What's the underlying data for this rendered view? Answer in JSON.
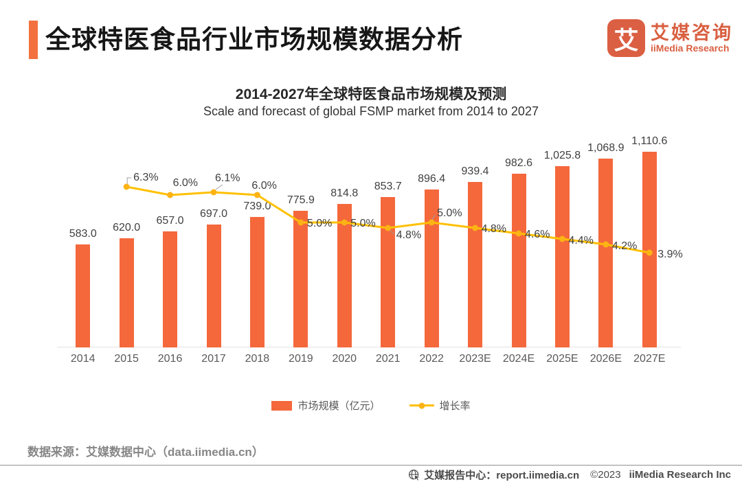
{
  "page": {
    "header": {
      "title": "全球特医食品行业市场规模数据分析",
      "logo": {
        "tile_char": "艾",
        "brand_cn": "艾媒咨询",
        "brand_en": "iiMedia Research"
      }
    },
    "source_note": "数据来源：艾媒数据中心（data.iimedia.cn）",
    "footer": {
      "report_center": "艾媒报告中心：report.iimedia.cn",
      "copyright": "©2023",
      "company": "iiMedia Research Inc"
    },
    "colors": {
      "accent_orange": "#F3703F",
      "bar_orange": "#F4683C",
      "line_yellow": "#FFC000",
      "logo_orange": "#D95F41"
    }
  },
  "chart_data": {
    "type": "combo: bar + line",
    "title": "2014-2027年全球特医食品市场规模及预测",
    "subtitle": "Scale and forecast of global FSMP market from 2014 to 2027",
    "categories": [
      "2014",
      "2015",
      "2016",
      "2017",
      "2018",
      "2019",
      "2020",
      "2021",
      "2022",
      "2023E",
      "2024E",
      "2025E",
      "2026E",
      "2027E"
    ],
    "series": [
      {
        "name": "市场规模（亿元）",
        "type": "bar",
        "color": "#F4683C",
        "values": [
          583.0,
          620.0,
          657.0,
          697.0,
          739.0,
          775.9,
          814.8,
          853.7,
          896.4,
          939.4,
          982.6,
          1025.8,
          1068.9,
          1110.6
        ],
        "data_labels": [
          "583.0",
          "620.0",
          "657.0",
          "697.0",
          "739.0",
          "775.9",
          "814.8",
          "853.7",
          "896.4",
          "939.4",
          "982.6",
          "1,025.8",
          "1,068.9",
          "1,110.6"
        ]
      },
      {
        "name": "增长率",
        "type": "line",
        "color": "#FFC000",
        "start_category_index": 1,
        "values_pct": [
          6.3,
          6.0,
          6.1,
          6.0,
          5.0,
          5.0,
          4.8,
          5.0,
          4.8,
          4.6,
          4.4,
          4.2,
          3.9
        ],
        "data_labels": [
          "6.3%",
          "6.0%",
          "6.1%",
          "6.0%",
          "5.0%",
          "5.0%",
          "4.8%",
          "5.0%",
          "4.8%",
          "4.6%",
          "4.4%",
          "4.2%",
          "3.9%"
        ]
      }
    ],
    "legend": {
      "position": "bottom",
      "items": [
        "市场规模（亿元）",
        "增长率"
      ]
    },
    "axes": {
      "x": "years 2014-2027 (E = estimated/forecast)",
      "y_left": "hidden (亿元)",
      "y_right": "hidden (%)",
      "gridlines": false,
      "data_labels_shown": true
    }
  }
}
